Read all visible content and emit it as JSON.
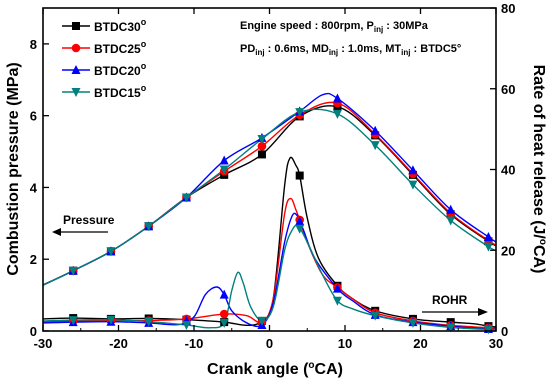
{
  "chart_data": {
    "type": "line",
    "xlabel": "Crank angle (°CA)",
    "ylabel_left": "Combustion pressure (MPa)",
    "ylabel_right": "Rate of heat release (J/°CA)",
    "xlim": [
      -30,
      30
    ],
    "ylim_left": [
      0,
      9
    ],
    "ylim_right": [
      0,
      80
    ],
    "x_ticks": [
      -30,
      -20,
      -10,
      0,
      10,
      20,
      30
    ],
    "y_ticks_left": [
      0,
      2,
      4,
      6,
      8
    ],
    "y_ticks_right": [
      0,
      20,
      40,
      60,
      80
    ],
    "grid": false,
    "legend_position": "top-left",
    "annotation_line1": "Engine speed : 800rpm, P_inj : 30MPa",
    "annotation_line2": "PD_inj : 0.6ms, MD_inj : 1.0ms, MT_inj : BTDC5°",
    "label_pressure": "Pressure",
    "label_rohr": "ROHR",
    "series": [
      {
        "name": "BTDC30°",
        "color": "#000000",
        "marker": "square",
        "pressure": [
          [
            -30,
            1.28
          ],
          [
            -26,
            1.68
          ],
          [
            -21,
            2.22
          ],
          [
            -16,
            2.92
          ],
          [
            -11,
            3.72
          ],
          [
            -6,
            4.35
          ],
          [
            -1,
            4.92
          ],
          [
            4,
            5.98
          ],
          [
            9,
            6.25
          ],
          [
            14,
            5.45
          ],
          [
            19,
            4.35
          ],
          [
            24,
            3.25
          ],
          [
            29,
            2.5
          ],
          [
            30,
            2.38
          ]
        ],
        "rohr": [
          [
            -30,
            3.0
          ],
          [
            -26,
            3.2
          ],
          [
            -21,
            3.0
          ],
          [
            -16,
            3.1
          ],
          [
            -11,
            2.8
          ],
          [
            -6,
            2.2
          ],
          [
            -3,
            1.4
          ],
          [
            -1,
            2.5
          ],
          [
            0.5,
            8.0
          ],
          [
            2,
            36.0
          ],
          [
            2.7,
            42.8
          ],
          [
            3.5,
            41.0
          ],
          [
            4,
            38.5
          ],
          [
            5,
            28.0
          ],
          [
            6.5,
            18.0
          ],
          [
            9,
            11.2
          ],
          [
            11,
            8.0
          ],
          [
            14,
            5.0
          ],
          [
            19,
            3.0
          ],
          [
            24,
            2.2
          ],
          [
            27,
            1.8
          ],
          [
            29,
            1.2
          ],
          [
            30,
            1.0
          ]
        ]
      },
      {
        "name": "BTDC25°",
        "color": "#ff0000",
        "marker": "circle",
        "pressure": [
          [
            -30,
            1.28
          ],
          [
            -26,
            1.68
          ],
          [
            -21,
            2.22
          ],
          [
            -16,
            2.92
          ],
          [
            -11,
            3.72
          ],
          [
            -6,
            4.45
          ],
          [
            -1,
            5.15
          ],
          [
            4,
            6.02
          ],
          [
            9,
            6.35
          ],
          [
            14,
            5.48
          ],
          [
            19,
            4.38
          ],
          [
            24,
            3.28
          ],
          [
            29,
            2.52
          ],
          [
            30,
            2.4
          ]
        ],
        "rohr": [
          [
            -30,
            2.2
          ],
          [
            -26,
            2.5
          ],
          [
            -21,
            2.6
          ],
          [
            -16,
            2.6
          ],
          [
            -11,
            3.0
          ],
          [
            -6,
            4.2
          ],
          [
            -3,
            3.8
          ],
          [
            -1,
            2.2
          ],
          [
            0.5,
            8.0
          ],
          [
            2,
            29.0
          ],
          [
            2.8,
            32.8
          ],
          [
            3.5,
            30.0
          ],
          [
            4,
            27.5
          ],
          [
            5,
            22.0
          ],
          [
            7,
            14.0
          ],
          [
            9,
            10.8
          ],
          [
            11,
            8.0
          ],
          [
            14,
            4.5
          ],
          [
            19,
            2.5
          ],
          [
            24,
            1.4
          ],
          [
            29,
            0.8
          ],
          [
            30,
            0.7
          ]
        ]
      },
      {
        "name": "BTDC20°",
        "color": "#0000ff",
        "marker": "triangle-up",
        "pressure": [
          [
            -30,
            1.28
          ],
          [
            -26,
            1.68
          ],
          [
            -21,
            2.22
          ],
          [
            -16,
            2.92
          ],
          [
            -11,
            3.72
          ],
          [
            -6,
            4.75
          ],
          [
            -1,
            5.38
          ],
          [
            4,
            6.12
          ],
          [
            7,
            6.58
          ],
          [
            9,
            6.48
          ],
          [
            14,
            5.58
          ],
          [
            19,
            4.48
          ],
          [
            24,
            3.38
          ],
          [
            29,
            2.62
          ],
          [
            30,
            2.48
          ]
        ],
        "rohr": [
          [
            -30,
            2.0
          ],
          [
            -26,
            2.2
          ],
          [
            -21,
            2.3
          ],
          [
            -16,
            2.0
          ],
          [
            -12,
            1.6
          ],
          [
            -10,
            3.5
          ],
          [
            -8.5,
            9.0
          ],
          [
            -7,
            10.9
          ],
          [
            -6,
            9.0
          ],
          [
            -5,
            5.0
          ],
          [
            -3,
            2.0
          ],
          [
            -1,
            1.5
          ],
          [
            0.5,
            7.0
          ],
          [
            2,
            22.0
          ],
          [
            3,
            28.5
          ],
          [
            3.7,
            28.5
          ],
          [
            4.5,
            25.0
          ],
          [
            6,
            18.0
          ],
          [
            9,
            10.5
          ],
          [
            11,
            7.5
          ],
          [
            14,
            4.0
          ],
          [
            19,
            2.2
          ],
          [
            24,
            1.2
          ],
          [
            29,
            0.5
          ],
          [
            30,
            0.5
          ]
        ]
      },
      {
        "name": "BTDC15°",
        "color": "#00807f",
        "marker": "triangle-down",
        "pressure": [
          [
            -30,
            1.28
          ],
          [
            -26,
            1.68
          ],
          [
            -21,
            2.22
          ],
          [
            -16,
            2.92
          ],
          [
            -11,
            3.72
          ],
          [
            -6,
            4.5
          ],
          [
            -1,
            5.35
          ],
          [
            4,
            6.1
          ],
          [
            9,
            6.05
          ],
          [
            14,
            5.18
          ],
          [
            19,
            4.08
          ],
          [
            24,
            3.08
          ],
          [
            29,
            2.35
          ],
          [
            30,
            2.25
          ]
        ],
        "rohr": [
          [
            -30,
            2.5
          ],
          [
            -26,
            2.7
          ],
          [
            -21,
            2.8
          ],
          [
            -16,
            2.3
          ],
          [
            -11,
            1.5
          ],
          [
            -8,
            0.8
          ],
          [
            -6,
            2.0
          ],
          [
            -5,
            10.0
          ],
          [
            -4.2,
            14.5
          ],
          [
            -3.5,
            12.0
          ],
          [
            -2.5,
            6.0
          ],
          [
            -1,
            2.5
          ],
          [
            0.5,
            6.0
          ],
          [
            2,
            20.0
          ],
          [
            3,
            25.0
          ],
          [
            3.8,
            26.0
          ],
          [
            5,
            22.0
          ],
          [
            7,
            14.0
          ],
          [
            9,
            7.5
          ],
          [
            11,
            5.5
          ],
          [
            14,
            3.8
          ],
          [
            19,
            2.0
          ],
          [
            24,
            0.9
          ],
          [
            29,
            0.4
          ],
          [
            30,
            0.4
          ]
        ]
      }
    ]
  }
}
